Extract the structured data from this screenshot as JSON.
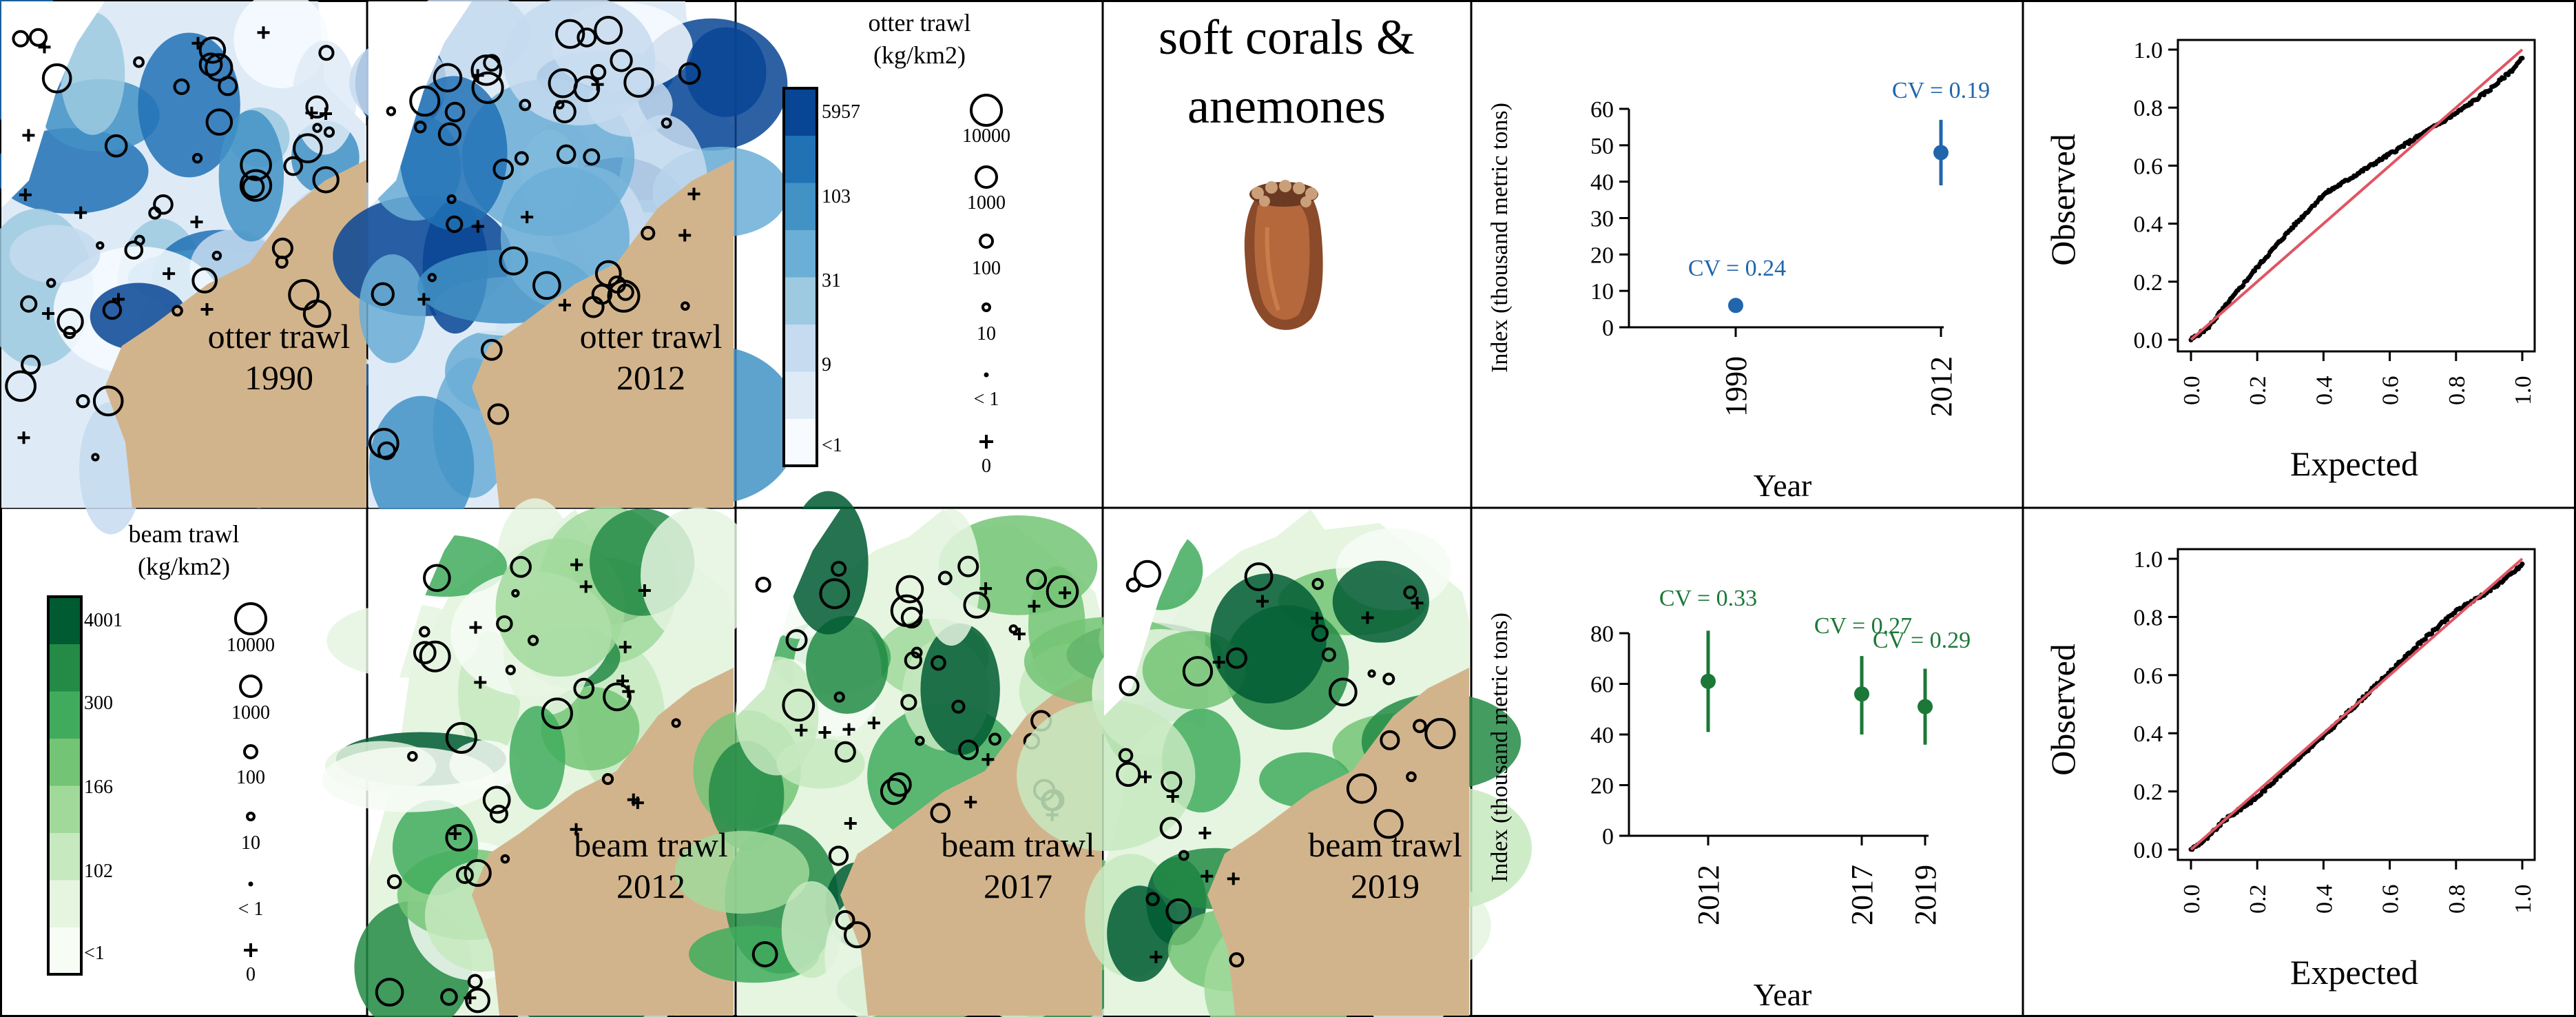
{
  "colors": {
    "blue_fill": [
      "#f7fbff",
      "#deebf7",
      "#c6dbef",
      "#9ecae1",
      "#6baed6",
      "#4292c6",
      "#2171b5",
      "#084594"
    ],
    "green_fill": [
      "#f7fcf5",
      "#e5f5e0",
      "#c7e9c0",
      "#a1d99b",
      "#74c476",
      "#41ab5d",
      "#238b45",
      "#005a32"
    ],
    "land": "#d2b48c",
    "otter_point": "#2166ac",
    "beam_point": "#1b7837",
    "qq_line": "#e05563",
    "qq_points": "#000000"
  },
  "maps": {
    "otter_1990": {
      "survey": "otter trawl",
      "year": "1990"
    },
    "otter_2012": {
      "survey": "otter trawl",
      "year": "2012"
    },
    "beam_2012": {
      "survey": "beam trawl",
      "year": "2012"
    },
    "beam_2017": {
      "survey": "beam trawl",
      "year": "2017"
    },
    "beam_2019": {
      "survey": "beam trawl",
      "year": "2019"
    }
  },
  "legends": {
    "otter": {
      "title_line1": "otter trawl",
      "title_line2": "(kg/km2)",
      "color_labels": [
        "5957",
        "103",
        "31",
        "9",
        "<1"
      ],
      "size_labels": [
        "10000",
        "1000",
        "100",
        "10",
        "< 1",
        "0"
      ]
    },
    "beam": {
      "title_line1": "beam trawl",
      "title_line2": "(kg/km2)",
      "color_labels": [
        "4001",
        "300",
        "166",
        "102",
        "<1"
      ],
      "size_labels": [
        "10000",
        "1000",
        "100",
        "10",
        "< 1",
        "0"
      ]
    }
  },
  "species": {
    "title_line1": "soft corals &",
    "title_line2": "anemones",
    "image": "anemone-photo"
  },
  "chart_data": [
    {
      "type": "scatter",
      "subtype": "point-with-error-bar",
      "survey": "otter trawl",
      "xlabel": "Year",
      "ylabel": "Index (thousand metric tons)",
      "x": [
        "1990",
        "2012"
      ],
      "y": [
        6,
        48
      ],
      "lower": [
        4,
        39
      ],
      "upper": [
        8,
        57
      ],
      "cv_labels": [
        "CV = 0.24",
        "CV = 0.19"
      ],
      "yticks": [
        "0",
        "10",
        "20",
        "30",
        "40",
        "50",
        "60"
      ],
      "ylim": [
        0,
        60
      ],
      "color": "#2166ac"
    },
    {
      "type": "scatter",
      "subtype": "point-with-error-bar",
      "survey": "beam trawl",
      "xlabel": "Year",
      "ylabel": "Index (thousand metric tons)",
      "x": [
        "2012",
        "2017",
        "2019"
      ],
      "y": [
        61,
        56,
        51
      ],
      "lower": [
        41,
        40,
        36
      ],
      "upper": [
        81,
        71,
        66
      ],
      "cv_labels": [
        "CV = 0.33",
        "CV = 0.27",
        "CV = 0.29"
      ],
      "yticks": [
        "0",
        "20",
        "40",
        "60",
        "80"
      ],
      "ylim": [
        0,
        80
      ],
      "color": "#1b7837"
    },
    {
      "type": "scatter",
      "subtype": "qq-plot",
      "survey": "otter trawl",
      "xlabel": "Expected",
      "ylabel": "Observed",
      "xticks": [
        "0.0",
        "0.2",
        "0.4",
        "0.6",
        "0.8",
        "1.0"
      ],
      "yticks": [
        "0.0",
        "0.2",
        "0.4",
        "0.6",
        "0.8",
        "1.0"
      ],
      "xlim": [
        0,
        1
      ],
      "ylim": [
        0,
        1
      ],
      "reference_line": [
        [
          0,
          0
        ],
        [
          1,
          1
        ]
      ],
      "curve_x": [
        0,
        0.05,
        0.1,
        0.2,
        0.3,
        0.4,
        0.5,
        0.6,
        0.7,
        0.8,
        0.9,
        0.97,
        1.0
      ],
      "curve_y": [
        0,
        0.04,
        0.11,
        0.25,
        0.38,
        0.5,
        0.57,
        0.64,
        0.71,
        0.78,
        0.86,
        0.93,
        0.97
      ]
    },
    {
      "type": "scatter",
      "subtype": "qq-plot",
      "survey": "beam trawl",
      "xlabel": "Expected",
      "ylabel": "Observed",
      "xticks": [
        "0.0",
        "0.2",
        "0.4",
        "0.6",
        "0.8",
        "1.0"
      ],
      "yticks": [
        "0.0",
        "0.2",
        "0.4",
        "0.6",
        "0.8",
        "1.0"
      ],
      "xlim": [
        0,
        1
      ],
      "ylim": [
        0,
        1
      ],
      "reference_line": [
        [
          0,
          0
        ],
        [
          1,
          1
        ]
      ],
      "curve_x": [
        0,
        0.05,
        0.1,
        0.2,
        0.3,
        0.4,
        0.5,
        0.6,
        0.7,
        0.8,
        0.9,
        0.97,
        1.0
      ],
      "curve_y": [
        0,
        0.04,
        0.1,
        0.18,
        0.29,
        0.39,
        0.5,
        0.61,
        0.72,
        0.82,
        0.89,
        0.95,
        0.98
      ]
    }
  ]
}
